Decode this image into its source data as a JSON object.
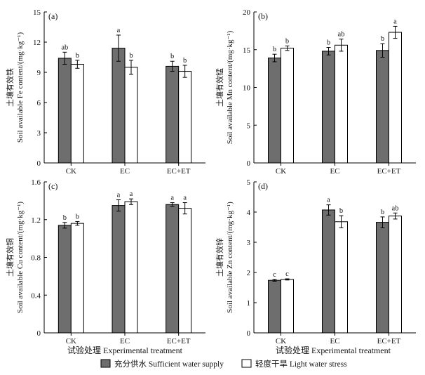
{
  "chart_data": [
    {
      "type": "bar",
      "panel_label": "(a)",
      "categories": [
        "CK",
        "EC",
        "EC+ET"
      ],
      "ylabel_cn": "土壤有效铁",
      "ylabel_en": "Soil available Fe content/(mg·kg⁻¹)",
      "ylim": [
        0,
        15
      ],
      "yticks": [
        "0",
        "3",
        "6",
        "9",
        "12",
        "15"
      ],
      "series": [
        {
          "name": "充分供水 Sufficient water supply",
          "color": "#6e6e6e",
          "values": [
            10.4,
            11.4,
            9.6
          ],
          "errors": [
            0.6,
            1.3,
            0.5
          ],
          "letters": [
            "ab",
            "a",
            "b"
          ]
        },
        {
          "name": "轻度干旱 Light water stress",
          "color": "#ffffff",
          "values": [
            9.8,
            9.5,
            9.1
          ],
          "errors": [
            0.4,
            0.7,
            0.6
          ],
          "letters": [
            "b",
            "b",
            "b"
          ]
        }
      ]
    },
    {
      "type": "bar",
      "panel_label": "(b)",
      "categories": [
        "CK",
        "EC",
        "EC+ET"
      ],
      "ylabel_cn": "土壤有效锰",
      "ylabel_en": "Soil available Mn content/(mg·kg⁻¹)",
      "ylim": [
        0,
        20
      ],
      "yticks": [
        "0",
        "5",
        "10",
        "15",
        "20"
      ],
      "series": [
        {
          "name": "充分供水 Sufficient water supply",
          "color": "#6e6e6e",
          "values": [
            13.9,
            14.8,
            14.9
          ],
          "errors": [
            0.5,
            0.5,
            0.9
          ],
          "letters": [
            "b",
            "b",
            "b"
          ]
        },
        {
          "name": "轻度干旱 Light water stress",
          "color": "#ffffff",
          "values": [
            15.2,
            15.6,
            17.3
          ],
          "errors": [
            0.3,
            0.8,
            0.8
          ],
          "letters": [
            "b",
            "ab",
            "a"
          ]
        }
      ]
    },
    {
      "type": "bar",
      "panel_label": "(c)",
      "categories": [
        "CK",
        "EC",
        "EC+ET"
      ],
      "ylabel_cn": "土壤有效铜",
      "ylabel_en": "Soil available Cu content/(mg·kg⁻¹)",
      "ylim": [
        0,
        1.6
      ],
      "yticks": [
        "0",
        "0.4",
        "0.8",
        "1.2",
        "1.6"
      ],
      "series": [
        {
          "name": "充分供水 Sufficient water supply",
          "color": "#6e6e6e",
          "values": [
            1.14,
            1.35,
            1.36
          ],
          "errors": [
            0.03,
            0.06,
            0.02
          ],
          "letters": [
            "b",
            "a",
            "a"
          ]
        },
        {
          "name": "轻度干旱 Light water stress",
          "color": "#ffffff",
          "values": [
            1.16,
            1.39,
            1.32
          ],
          "errors": [
            0.02,
            0.03,
            0.06
          ],
          "letters": [
            "b",
            "a",
            "a"
          ]
        }
      ]
    },
    {
      "type": "bar",
      "panel_label": "(d)",
      "categories": [
        "CK",
        "EC",
        "EC+ET"
      ],
      "ylabel_cn": "土壤有效锌",
      "ylabel_en": "Soil available Zn content/(mg·kg⁻¹)",
      "ylim": [
        0,
        5
      ],
      "yticks": [
        "0",
        "1",
        "2",
        "3",
        "4",
        "5"
      ],
      "series": [
        {
          "name": "充分供水 Sufficient water supply",
          "color": "#6e6e6e",
          "values": [
            1.74,
            4.07,
            3.66
          ],
          "errors": [
            0.03,
            0.17,
            0.18
          ],
          "letters": [
            "c",
            "a",
            "b"
          ]
        },
        {
          "name": "轻度干旱 Light water stress",
          "color": "#ffffff",
          "values": [
            1.77,
            3.68,
            3.87
          ],
          "errors": [
            0.02,
            0.2,
            0.1
          ],
          "letters": [
            "c",
            "b",
            "ab"
          ]
        }
      ]
    }
  ],
  "shared_xlabel": "试验处理 Experimental treatment",
  "legend": [
    {
      "label": "充分供水 Sufficient water supply",
      "color": "#6e6e6e"
    },
    {
      "label": "轻度干旱 Light water stress",
      "color": "#ffffff"
    }
  ]
}
